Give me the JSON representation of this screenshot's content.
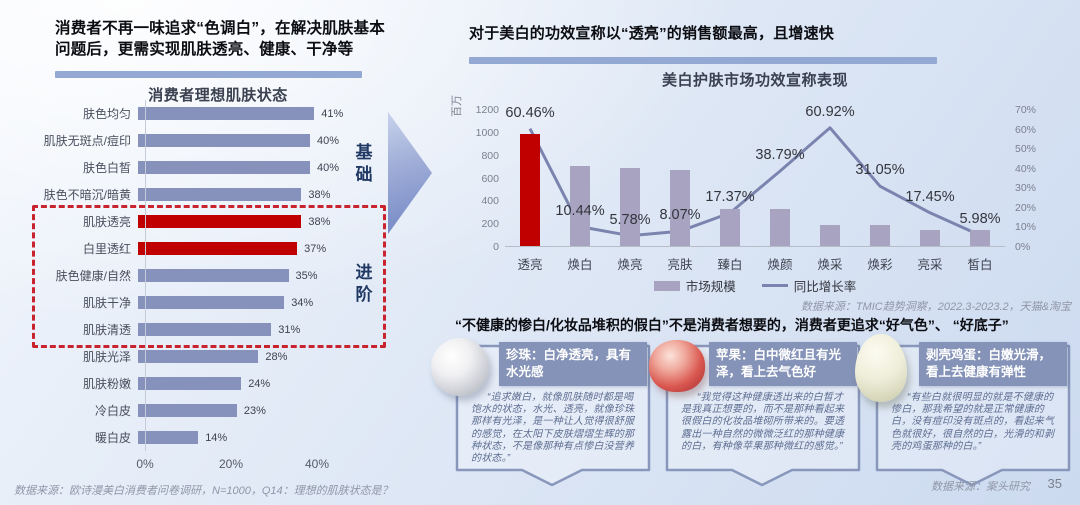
{
  "page": {
    "number": "35"
  },
  "colors": {
    "bar_blue": "#8691bc",
    "bar_purple": "#a7a3c0",
    "highlight_red": "#c00000",
    "line": "#7b84ae",
    "rule": "#93a8d2",
    "group_label": "#1f3864",
    "dash_box": "#c9232e",
    "card_accent": "#8593b8"
  },
  "left": {
    "headline": "消费者不再一味追求“色调白”，在解决肌肤基本问题后，更需实现肌肤透亮、健康、干净等",
    "source": "数据来源：欧诗漫美白消费者问卷调研，N=1000，Q14：理想的肌肤状态是？"
  },
  "right": {
    "headline": "对于美白的功效宣称以“透亮”的销售额最高，且增速快",
    "source": "数据来源：TMIC趋势洞察，2022.3-2023.2，天猫&淘宝"
  },
  "bottom": {
    "headline": "“不健康的惨白/化妆品堆积的假白”不是消费者想要的，消费者更追求“好气色”、 “好底子”",
    "cards": [
      {
        "icon": "pearl-image",
        "title": "珍珠：白净透亮，具有水光感",
        "quote": "“追求嫩白，就像肌肤随时都是喝饱水的状态，水光、透亮，就像珍珠那样有光泽，是一种让人觉得很舒服的感觉，在太阳下皮肤熠熠生辉的那种状态，不是像那种有点惨白没营养的状态。”"
      },
      {
        "icon": "apple-image",
        "title": "苹果：白中微红且有光泽，看上去气色好",
        "quote": "“我觉得这种健康透出来的白皙才是我真正想要的，而不是那种看起来很假白的化妆品堆砌所带来的。要透露出一种自然的微微泛红的那种健康的白，有种像苹果那种微红的感觉。”"
      },
      {
        "icon": "egg-image",
        "title": "剥壳鸡蛋：白嫩光滑，看上去健康有弹性",
        "quote": "“有些白就很明显的就是不健康的惨白，那我希望的就是正常健康的白，没有痘印没有斑点的，看起来气色就很好，很自然的白，光滑的和剥壳的鸡蛋那种的白。”"
      }
    ],
    "source": "数据来源：案头研究"
  },
  "chart_data": [
    {
      "type": "bar",
      "orientation": "horizontal",
      "title": "消费者理想肌肤状态",
      "categories": [
        "肤色均匀",
        "肌肤无斑点/痘印",
        "肤色白皙",
        "肤色不暗沉/暗黄",
        "肌肤透亮",
        "白里透红",
        "肤色健康/自然",
        "肌肤干净",
        "肌肤清透",
        "肌肤光泽",
        "肌肤粉嫩",
        "冷白皮",
        "暖白皮"
      ],
      "values": [
        41,
        40,
        40,
        38,
        38,
        37,
        35,
        34,
        31,
        28,
        24,
        23,
        14
      ],
      "value_labels": [
        "41%",
        "40%",
        "40%",
        "38%",
        "38%",
        "37%",
        "35%",
        "34%",
        "31%",
        "28%",
        "24%",
        "23%",
        "14%"
      ],
      "highlight_indices": [
        4,
        5
      ],
      "xticks": [
        "0%",
        "20%",
        "40%"
      ],
      "xlim": [
        0,
        44
      ],
      "grid": false,
      "groups": [
        {
          "label": "基础",
          "rows": [
            0,
            3
          ]
        },
        {
          "label": "进阶",
          "rows": [
            4,
            8
          ]
        }
      ]
    },
    {
      "type": "combo",
      "title": "美白护肤市场功效宣称表现",
      "unit_label": "百万",
      "categories": [
        "透亮",
        "焕白",
        "焕亮",
        "亮肤",
        "臻白",
        "焕颜",
        "焕采",
        "焕彩",
        "亮采",
        "皙白"
      ],
      "series": [
        {
          "name": "市场规模",
          "type": "bar",
          "axis": "left",
          "values": [
            980,
            700,
            685,
            665,
            325,
            320,
            185,
            180,
            140,
            140
          ],
          "highlight_index": 0
        },
        {
          "name": "同比增长率",
          "type": "line",
          "axis": "right",
          "values": [
            60.46,
            10.44,
            5.78,
            8.07,
            17.37,
            38.79,
            60.92,
            31.05,
            17.45,
            5.98
          ],
          "labels": [
            "60.46%",
            "10.44%",
            "5.78%",
            "8.07%",
            "17.37%",
            "38.79%",
            "60.92%",
            "31.05%",
            "17.45%",
            "5.98%"
          ]
        }
      ],
      "left_axis": {
        "min": 0,
        "max": 1200,
        "step": 200
      },
      "right_axis": {
        "min": 0,
        "max": 70,
        "step": 10,
        "suffix": "%"
      },
      "legend_position": "bottom",
      "grid": false
    }
  ]
}
